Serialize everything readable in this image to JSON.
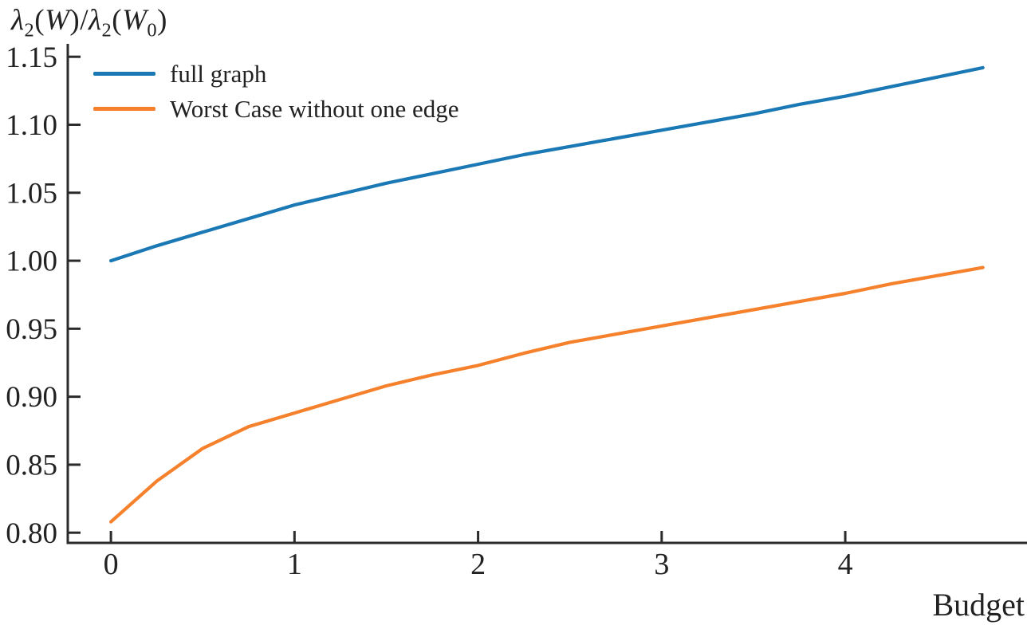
{
  "figure": {
    "background": "#ffffff",
    "text_color": "#222222",
    "axis_color": "#2b2b2b"
  },
  "ylabel_parts": {
    "lambda1": "λ",
    "sub1": "2",
    "open1": "(",
    "w1": "W",
    "mid": ")/",
    "lambda2": "λ",
    "sub2": "2",
    "open2": "(",
    "w2": "W",
    "sub0": "0",
    "close2": ")"
  },
  "chart_data": {
    "type": "line",
    "title": "",
    "xlabel": "Budget",
    "ylabel": "λ₂(W)/λ₂(W₀)",
    "grid": false,
    "legend_position": "upper left",
    "xlim": [
      -0.235,
      4.99
    ],
    "ylim": [
      0.7925,
      1.1595
    ],
    "x_tick_labels": [
      "0",
      "1",
      "2",
      "3",
      "4"
    ],
    "x_tick_values": [
      0,
      1,
      2,
      3,
      4
    ],
    "y_tick_labels": [
      "0.80",
      "0.85",
      "0.90",
      "0.95",
      "1.00",
      "1.05",
      "1.10",
      "1.15"
    ],
    "y_tick_values": [
      0.8,
      0.85,
      0.9,
      0.95,
      1.0,
      1.05,
      1.1,
      1.15
    ],
    "series": [
      {
        "name": "full graph",
        "color": "#1a78b4",
        "x": [
          0,
          0.25,
          0.5,
          0.75,
          1.0,
          1.25,
          1.5,
          1.75,
          2.0,
          2.25,
          2.5,
          2.75,
          3.0,
          3.25,
          3.5,
          3.75,
          4.0,
          4.25,
          4.5,
          4.75
        ],
        "y": [
          1.0,
          1.011,
          1.021,
          1.031,
          1.041,
          1.049,
          1.057,
          1.064,
          1.071,
          1.078,
          1.084,
          1.09,
          1.096,
          1.102,
          1.108,
          1.115,
          1.121,
          1.128,
          1.135,
          1.142
        ]
      },
      {
        "name": "Worst Case without one edge",
        "color": "#f5812d",
        "x": [
          0,
          0.25,
          0.5,
          0.75,
          1.0,
          1.25,
          1.5,
          1.75,
          2.0,
          2.25,
          2.5,
          2.75,
          3.0,
          3.25,
          3.5,
          3.75,
          4.0,
          4.25,
          4.5,
          4.75
        ],
        "y": [
          0.808,
          0.838,
          0.862,
          0.878,
          0.888,
          0.898,
          0.908,
          0.916,
          0.923,
          0.932,
          0.94,
          0.946,
          0.952,
          0.958,
          0.964,
          0.97,
          0.976,
          0.983,
          0.989,
          0.995
        ]
      }
    ]
  }
}
